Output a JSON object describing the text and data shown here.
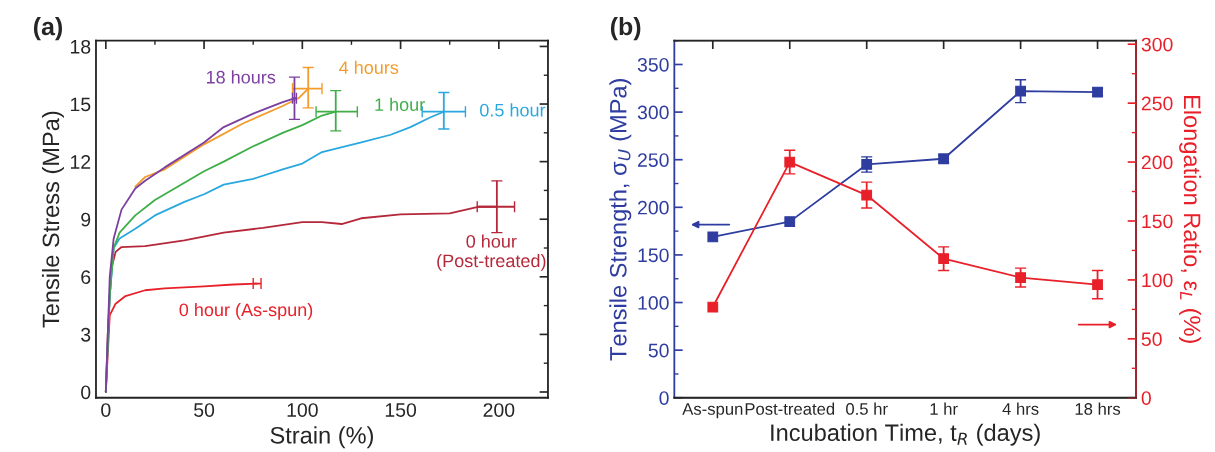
{
  "chart_data": [
    {
      "type": "line",
      "title": "(a)",
      "xlabel": "Strain (%)",
      "ylabel": "Tensile Stress (MPa)",
      "xlim": [
        -5,
        225
      ],
      "ylim": [
        -0.3,
        18.3
      ],
      "xticks": [
        0,
        50,
        100,
        150,
        200
      ],
      "yticks": [
        0,
        3,
        6,
        9,
        12,
        15,
        18
      ],
      "grid": false,
      "legend": false,
      "marker": "none",
      "line_style": "solid",
      "series": [
        {
          "name": "0 hour (As-spun)",
          "color": "#e8202a",
          "x": [
            0,
            1,
            2,
            3,
            5,
            10,
            20,
            30,
            50,
            65,
            77
          ],
          "values": [
            0,
            2,
            4,
            4.2,
            4.6,
            5.0,
            5.3,
            5.4,
            5.5,
            5.6,
            5.65
          ],
          "errors": [
            null,
            null,
            null,
            null,
            null,
            null,
            null,
            null,
            null,
            null,
            null
          ],
          "xerrors": [
            null,
            null,
            null,
            null,
            null,
            null,
            null,
            null,
            null,
            null,
            [
              75,
              79
            ]
          ]
        },
        {
          "name": "0 hour\n(Post-treated)",
          "color": "#b5283a",
          "x": [
            0,
            1,
            2,
            3,
            5,
            8,
            20,
            40,
            60,
            80,
            100,
            110,
            120,
            130,
            150,
            175,
            190,
            199
          ],
          "values": [
            0,
            3,
            5,
            6.5,
            7.3,
            7.55,
            7.6,
            7.9,
            8.3,
            8.55,
            8.85,
            8.85,
            8.75,
            9.05,
            9.25,
            9.3,
            9.65,
            9.65
          ],
          "errors": [
            null,
            null,
            null,
            null,
            null,
            null,
            null,
            null,
            null,
            null,
            null,
            null,
            null,
            null,
            null,
            null,
            null,
            [
              8.3,
              11
            ]
          ],
          "xerrors": [
            null,
            null,
            null,
            null,
            null,
            null,
            null,
            null,
            null,
            null,
            null,
            null,
            null,
            null,
            null,
            null,
            null,
            [
              189,
              208
            ]
          ]
        },
        {
          "name": "0.5 hour",
          "color": "#29a8df",
          "x": [
            0,
            2,
            4,
            7,
            15,
            25,
            40,
            50,
            60,
            75,
            90,
            100,
            110,
            130,
            145,
            155,
            165,
            172
          ],
          "values": [
            0,
            5,
            7.5,
            8.0,
            8.5,
            9.2,
            9.9,
            10.3,
            10.8,
            11.1,
            11.6,
            11.9,
            12.5,
            13.0,
            13.4,
            13.8,
            14.3,
            14.6
          ],
          "errors": [
            null,
            null,
            null,
            null,
            null,
            null,
            null,
            null,
            null,
            null,
            null,
            null,
            null,
            null,
            null,
            null,
            null,
            [
              13.7,
              15.6
            ]
          ],
          "xerrors": [
            null,
            null,
            null,
            null,
            null,
            null,
            null,
            null,
            null,
            null,
            null,
            null,
            null,
            null,
            null,
            null,
            null,
            [
              161,
              183
            ]
          ]
        },
        {
          "name": "1 hour",
          "color": "#3fae49",
          "x": [
            0,
            2,
            4,
            7,
            15,
            25,
            40,
            50,
            60,
            75,
            90,
            100,
            110,
            117
          ],
          "values": [
            0,
            5,
            7.5,
            8.3,
            9.2,
            10.0,
            10.9,
            11.5,
            12.0,
            12.8,
            13.5,
            13.9,
            14.4,
            14.6
          ],
          "errors": [
            null,
            null,
            null,
            null,
            null,
            null,
            null,
            null,
            null,
            null,
            null,
            null,
            null,
            [
              13.6,
              15.7
            ]
          ],
          "xerrors": [
            null,
            null,
            null,
            null,
            null,
            null,
            null,
            null,
            null,
            null,
            null,
            null,
            null,
            [
              107,
              128
            ]
          ]
        },
        {
          "name": "4 hours",
          "color": "#f39c2b",
          "x": [
            15,
            20,
            30,
            50,
            70,
            90,
            98,
            103
          ],
          "values": [
            10.7,
            11.2,
            11.6,
            12.9,
            14.0,
            14.9,
            15.3,
            15.8
          ],
          "errors": [
            null,
            null,
            null,
            null,
            null,
            null,
            null,
            [
              14.8,
              16.9
            ]
          ],
          "xerrors": [
            null,
            null,
            null,
            null,
            null,
            null,
            null,
            [
              95,
              110
            ]
          ]
        },
        {
          "name": "18 hours",
          "color": "#7b3fa0",
          "x": [
            0,
            2,
            4,
            8,
            15,
            20,
            30,
            50,
            60,
            75,
            90,
            96
          ],
          "values": [
            0,
            6,
            8,
            9.5,
            10.6,
            11.0,
            11.7,
            13.0,
            13.8,
            14.5,
            15.1,
            15.3
          ],
          "errors": [
            null,
            null,
            null,
            null,
            null,
            null,
            null,
            null,
            null,
            null,
            null,
            [
              14.2,
              16.4
            ]
          ],
          "xerrors": [
            null,
            null,
            null,
            null,
            null,
            null,
            null,
            null,
            null,
            null,
            null,
            [
              95,
              97
            ]
          ]
        }
      ]
    },
    {
      "type": "line",
      "title": "(b)",
      "xlabel": "Incubation Time, t$_{R}$ (days)",
      "ylabel": "Tensile Strength, σ$_{U}$ (MPa)",
      "y2label": "Elongation Ratio, ε$_{L}$ (%)",
      "categories": [
        "As-spun",
        "Post-treated",
        "0.5 hr",
        "1 hr",
        "4 hrs",
        "18 hrs"
      ],
      "ylim": [
        0,
        375
      ],
      "yticks": [
        0,
        50,
        100,
        150,
        200,
        250,
        300,
        350
      ],
      "y2lim": [
        0,
        303
      ],
      "y2ticks": [
        0,
        50,
        100,
        150,
        200,
        250,
        300
      ],
      "grid": false,
      "legend": false,
      "marker": "square",
      "line_style": "solid",
      "series": [
        {
          "color": "#2e3d9f",
          "values": [
            169,
            185,
            245,
            251,
            322,
            321
          ],
          "errors": [
            null,
            null,
            8,
            4,
            12,
            4
          ]
        },
        {
          "color": "#e8202a",
          "axis": "y2",
          "values": [
            77,
            200,
            172,
            118,
            102,
            96
          ],
          "errors": [
            null,
            10,
            11,
            10,
            8,
            12
          ]
        }
      ]
    }
  ]
}
